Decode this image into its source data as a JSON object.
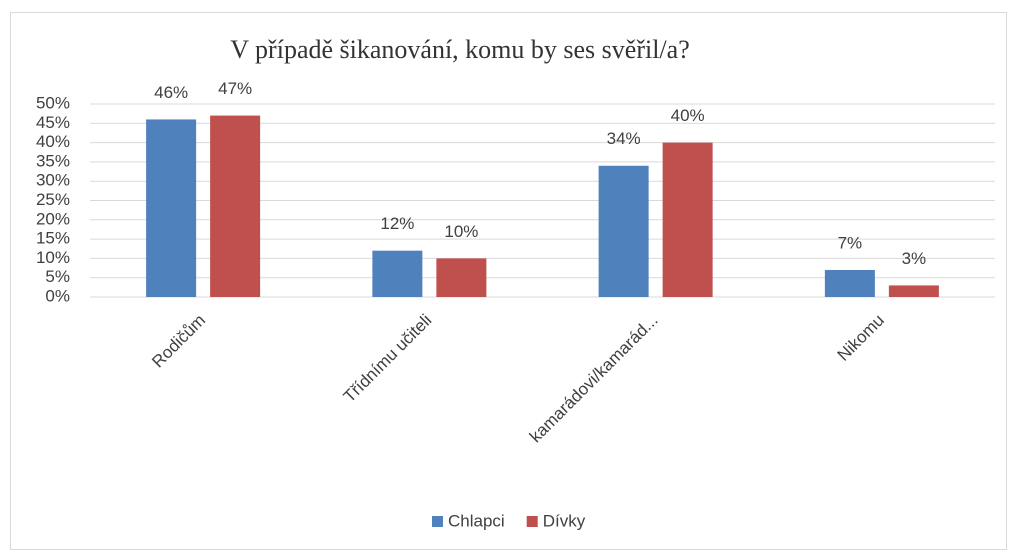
{
  "chart_data": {
    "type": "bar",
    "title": "V případě šikanování, komu by ses svěřil/a?",
    "categories": [
      "Rodičům",
      "Třídnímu učiteli",
      "kamarádovi/kamarád...",
      "Nikomu"
    ],
    "series": [
      {
        "name": "Chlapci",
        "color": "#4f81bd",
        "values": [
          46,
          12,
          34,
          7
        ],
        "value_labels": [
          "46%",
          "12%",
          "34%",
          "7%"
        ]
      },
      {
        "name": "Dívky",
        "color": "#c0504d",
        "values": [
          47,
          10,
          40,
          3
        ],
        "value_labels": [
          "47%",
          "10%",
          "40%",
          "3%"
        ]
      }
    ],
    "ylim": [
      0,
      50
    ],
    "yticks": [
      {
        "value": 0,
        "label": "0%"
      },
      {
        "value": 5,
        "label": "5%"
      },
      {
        "value": 10,
        "label": "10%"
      },
      {
        "value": 15,
        "label": "15%"
      },
      {
        "value": 20,
        "label": "20%"
      },
      {
        "value": 25,
        "label": "25%"
      },
      {
        "value": 30,
        "label": "30%"
      },
      {
        "value": 35,
        "label": "35%"
      },
      {
        "value": 40,
        "label": "40%"
      },
      {
        "value": 45,
        "label": "45%"
      },
      {
        "value": 50,
        "label": "50%"
      }
    ],
    "grid": true,
    "legend": "bottom"
  }
}
